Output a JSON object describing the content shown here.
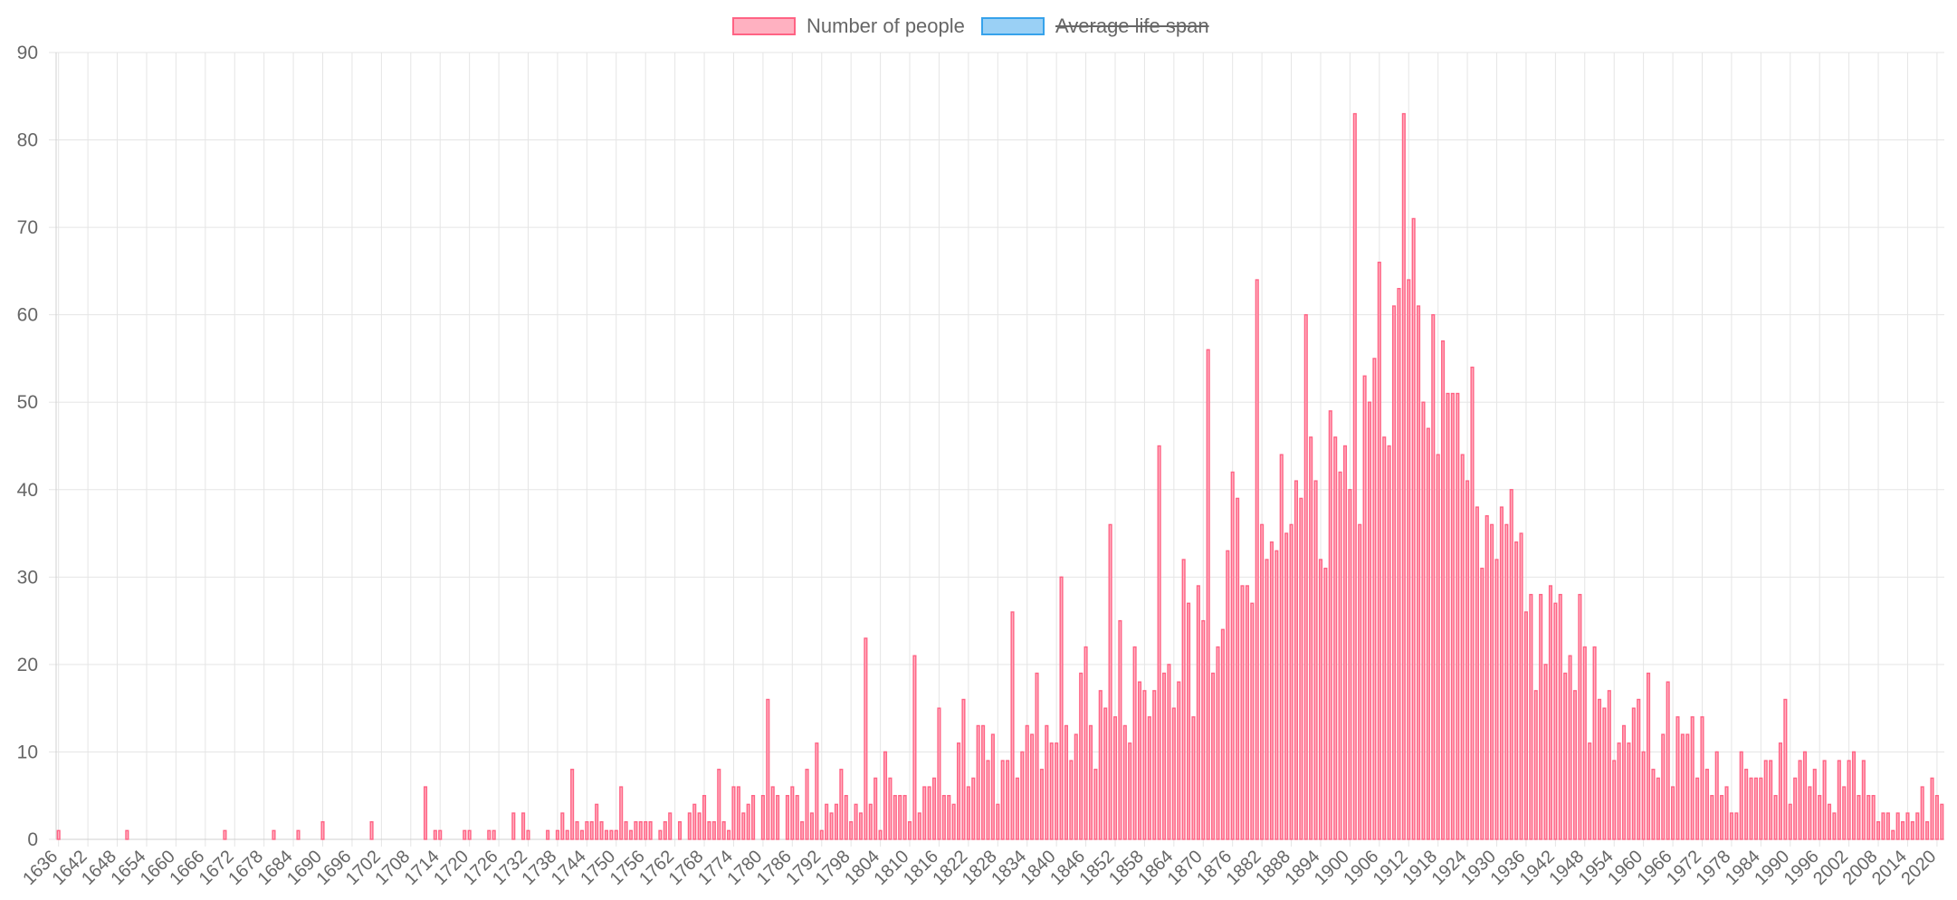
{
  "legend": {
    "series1_label": "Number of people",
    "series2_label": "Average life span"
  },
  "colors": {
    "series1_fill": "#ffb1c1",
    "series1_stroke": "#ff6384",
    "series2_fill": "#9ad0f5",
    "series2_stroke": "#36a2eb",
    "grid": "#e5e5e5",
    "text": "#666666"
  },
  "chart_data": {
    "type": "bar",
    "title": "",
    "xlabel": "",
    "ylabel": "",
    "ylim": [
      0,
      90
    ],
    "y_ticks": [
      0,
      10,
      20,
      30,
      40,
      50,
      60,
      70,
      80,
      90
    ],
    "x_range": [
      1636,
      2021
    ],
    "x_tick_labels": [
      1636,
      1642,
      1648,
      1654,
      1660,
      1666,
      1672,
      1678,
      1684,
      1690,
      1696,
      1702,
      1708,
      1714,
      1720,
      1726,
      1732,
      1738,
      1744,
      1750,
      1756,
      1762,
      1768,
      1774,
      1780,
      1786,
      1792,
      1798,
      1804,
      1810,
      1816,
      1822,
      1828,
      1834,
      1840,
      1846,
      1852,
      1858,
      1864,
      1870,
      1876,
      1882,
      1888,
      1894,
      1900,
      1906,
      1912,
      1918,
      1924,
      1930,
      1936,
      1942,
      1948,
      1954,
      1960,
      1966,
      1972,
      1978,
      1984,
      1990,
      1996,
      2002,
      2008,
      2014,
      2020
    ],
    "grid": true,
    "legend_position": "top",
    "series": [
      {
        "name": "Number of people",
        "hidden": false,
        "points": [
          [
            1636,
            1
          ],
          [
            1650,
            1
          ],
          [
            1670,
            1
          ],
          [
            1680,
            1
          ],
          [
            1685,
            1
          ],
          [
            1690,
            2
          ],
          [
            1700,
            2
          ],
          [
            1711,
            6
          ],
          [
            1713,
            1
          ],
          [
            1714,
            1
          ],
          [
            1719,
            1
          ],
          [
            1720,
            1
          ],
          [
            1724,
            1
          ],
          [
            1725,
            1
          ],
          [
            1729,
            3
          ],
          [
            1731,
            3
          ],
          [
            1732,
            1
          ],
          [
            1736,
            1
          ],
          [
            1738,
            1
          ],
          [
            1739,
            3
          ],
          [
            1740,
            1
          ],
          [
            1741,
            8
          ],
          [
            1742,
            2
          ],
          [
            1743,
            1
          ],
          [
            1744,
            2
          ],
          [
            1745,
            2
          ],
          [
            1746,
            4
          ],
          [
            1747,
            2
          ],
          [
            1748,
            1
          ],
          [
            1749,
            1
          ],
          [
            1750,
            1
          ],
          [
            1751,
            6
          ],
          [
            1752,
            2
          ],
          [
            1753,
            1
          ],
          [
            1754,
            2
          ],
          [
            1755,
            2
          ],
          [
            1756,
            2
          ],
          [
            1757,
            2
          ],
          [
            1759,
            1
          ],
          [
            1760,
            2
          ],
          [
            1761,
            3
          ],
          [
            1763,
            2
          ],
          [
            1765,
            3
          ],
          [
            1766,
            4
          ],
          [
            1767,
            3
          ],
          [
            1768,
            5
          ],
          [
            1769,
            2
          ],
          [
            1770,
            2
          ],
          [
            1771,
            8
          ],
          [
            1772,
            2
          ],
          [
            1773,
            1
          ],
          [
            1774,
            6
          ],
          [
            1775,
            6
          ],
          [
            1776,
            3
          ],
          [
            1777,
            4
          ],
          [
            1778,
            5
          ],
          [
            1780,
            5
          ],
          [
            1781,
            16
          ],
          [
            1782,
            6
          ],
          [
            1783,
            5
          ],
          [
            1785,
            5
          ],
          [
            1786,
            6
          ],
          [
            1787,
            5
          ],
          [
            1788,
            2
          ],
          [
            1789,
            8
          ],
          [
            1790,
            3
          ],
          [
            1791,
            11
          ],
          [
            1792,
            1
          ],
          [
            1793,
            4
          ],
          [
            1794,
            3
          ],
          [
            1795,
            4
          ],
          [
            1796,
            8
          ],
          [
            1797,
            5
          ],
          [
            1798,
            2
          ],
          [
            1799,
            4
          ],
          [
            1800,
            3
          ],
          [
            1801,
            23
          ],
          [
            1802,
            4
          ],
          [
            1803,
            7
          ],
          [
            1804,
            1
          ],
          [
            1805,
            10
          ],
          [
            1806,
            7
          ],
          [
            1807,
            5
          ],
          [
            1808,
            5
          ],
          [
            1809,
            5
          ],
          [
            1810,
            2
          ],
          [
            1811,
            21
          ],
          [
            1812,
            3
          ],
          [
            1813,
            6
          ],
          [
            1814,
            6
          ],
          [
            1815,
            7
          ],
          [
            1816,
            15
          ],
          [
            1817,
            5
          ],
          [
            1818,
            5
          ],
          [
            1819,
            4
          ],
          [
            1820,
            11
          ],
          [
            1821,
            16
          ],
          [
            1822,
            6
          ],
          [
            1823,
            7
          ],
          [
            1824,
            13
          ],
          [
            1825,
            13
          ],
          [
            1826,
            9
          ],
          [
            1827,
            12
          ],
          [
            1828,
            4
          ],
          [
            1829,
            9
          ],
          [
            1830,
            9
          ],
          [
            1831,
            26
          ],
          [
            1832,
            7
          ],
          [
            1833,
            10
          ],
          [
            1834,
            13
          ],
          [
            1835,
            12
          ],
          [
            1836,
            19
          ],
          [
            1837,
            8
          ],
          [
            1838,
            13
          ],
          [
            1839,
            11
          ],
          [
            1840,
            11
          ],
          [
            1841,
            30
          ],
          [
            1842,
            13
          ],
          [
            1843,
            9
          ],
          [
            1844,
            12
          ],
          [
            1845,
            19
          ],
          [
            1846,
            22
          ],
          [
            1847,
            13
          ],
          [
            1848,
            8
          ],
          [
            1849,
            17
          ],
          [
            1850,
            15
          ],
          [
            1851,
            36
          ],
          [
            1852,
            14
          ],
          [
            1853,
            25
          ],
          [
            1854,
            13
          ],
          [
            1855,
            11
          ],
          [
            1856,
            22
          ],
          [
            1857,
            18
          ],
          [
            1858,
            17
          ],
          [
            1859,
            14
          ],
          [
            1860,
            17
          ],
          [
            1861,
            45
          ],
          [
            1862,
            19
          ],
          [
            1863,
            20
          ],
          [
            1864,
            15
          ],
          [
            1865,
            18
          ],
          [
            1866,
            32
          ],
          [
            1867,
            27
          ],
          [
            1868,
            14
          ],
          [
            1869,
            29
          ],
          [
            1870,
            25
          ],
          [
            1871,
            56
          ],
          [
            1872,
            19
          ],
          [
            1873,
            22
          ],
          [
            1874,
            24
          ],
          [
            1875,
            33
          ],
          [
            1876,
            42
          ],
          [
            1877,
            39
          ],
          [
            1878,
            29
          ],
          [
            1879,
            29
          ],
          [
            1880,
            27
          ],
          [
            1881,
            64
          ],
          [
            1882,
            36
          ],
          [
            1883,
            32
          ],
          [
            1884,
            34
          ],
          [
            1885,
            33
          ],
          [
            1886,
            44
          ],
          [
            1887,
            35
          ],
          [
            1888,
            36
          ],
          [
            1889,
            41
          ],
          [
            1890,
            39
          ],
          [
            1891,
            60
          ],
          [
            1892,
            46
          ],
          [
            1893,
            41
          ],
          [
            1894,
            32
          ],
          [
            1895,
            31
          ],
          [
            1896,
            49
          ],
          [
            1897,
            46
          ],
          [
            1898,
            42
          ],
          [
            1899,
            45
          ],
          [
            1900,
            40
          ],
          [
            1901,
            83
          ],
          [
            1902,
            36
          ],
          [
            1903,
            53
          ],
          [
            1904,
            50
          ],
          [
            1905,
            55
          ],
          [
            1906,
            66
          ],
          [
            1907,
            46
          ],
          [
            1908,
            45
          ],
          [
            1909,
            61
          ],
          [
            1910,
            63
          ],
          [
            1911,
            83
          ],
          [
            1912,
            64
          ],
          [
            1913,
            71
          ],
          [
            1914,
            61
          ],
          [
            1915,
            50
          ],
          [
            1916,
            47
          ],
          [
            1917,
            60
          ],
          [
            1918,
            44
          ],
          [
            1919,
            57
          ],
          [
            1920,
            51
          ],
          [
            1921,
            51
          ],
          [
            1922,
            51
          ],
          [
            1923,
            44
          ],
          [
            1924,
            41
          ],
          [
            1925,
            54
          ],
          [
            1926,
            38
          ],
          [
            1927,
            31
          ],
          [
            1928,
            37
          ],
          [
            1929,
            36
          ],
          [
            1930,
            32
          ],
          [
            1931,
            38
          ],
          [
            1932,
            36
          ],
          [
            1933,
            40
          ],
          [
            1934,
            34
          ],
          [
            1935,
            35
          ],
          [
            1936,
            26
          ],
          [
            1937,
            28
          ],
          [
            1938,
            17
          ],
          [
            1939,
            28
          ],
          [
            1940,
            20
          ],
          [
            1941,
            29
          ],
          [
            1942,
            27
          ],
          [
            1943,
            28
          ],
          [
            1944,
            19
          ],
          [
            1945,
            21
          ],
          [
            1946,
            17
          ],
          [
            1947,
            28
          ],
          [
            1948,
            22
          ],
          [
            1949,
            11
          ],
          [
            1950,
            22
          ],
          [
            1951,
            16
          ],
          [
            1952,
            15
          ],
          [
            1953,
            17
          ],
          [
            1954,
            9
          ],
          [
            1955,
            11
          ],
          [
            1956,
            13
          ],
          [
            1957,
            11
          ],
          [
            1958,
            15
          ],
          [
            1959,
            16
          ],
          [
            1960,
            10
          ],
          [
            1961,
            19
          ],
          [
            1962,
            8
          ],
          [
            1963,
            7
          ],
          [
            1964,
            12
          ],
          [
            1965,
            18
          ],
          [
            1966,
            6
          ],
          [
            1967,
            14
          ],
          [
            1968,
            12
          ],
          [
            1969,
            12
          ],
          [
            1970,
            14
          ],
          [
            1971,
            7
          ],
          [
            1972,
            14
          ],
          [
            1973,
            8
          ],
          [
            1974,
            5
          ],
          [
            1975,
            10
          ],
          [
            1976,
            5
          ],
          [
            1977,
            6
          ],
          [
            1978,
            3
          ],
          [
            1979,
            3
          ],
          [
            1980,
            10
          ],
          [
            1981,
            8
          ],
          [
            1982,
            7
          ],
          [
            1983,
            7
          ],
          [
            1984,
            7
          ],
          [
            1985,
            9
          ],
          [
            1986,
            9
          ],
          [
            1987,
            5
          ],
          [
            1988,
            11
          ],
          [
            1989,
            16
          ],
          [
            1990,
            4
          ],
          [
            1991,
            7
          ],
          [
            1992,
            9
          ],
          [
            1993,
            10
          ],
          [
            1994,
            6
          ],
          [
            1995,
            8
          ],
          [
            1996,
            5
          ],
          [
            1997,
            9
          ],
          [
            1998,
            4
          ],
          [
            1999,
            3
          ],
          [
            2000,
            9
          ],
          [
            2001,
            6
          ],
          [
            2002,
            9
          ],
          [
            2003,
            10
          ],
          [
            2004,
            5
          ],
          [
            2005,
            9
          ],
          [
            2006,
            5
          ],
          [
            2007,
            5
          ],
          [
            2008,
            2
          ],
          [
            2009,
            3
          ],
          [
            2010,
            3
          ],
          [
            2011,
            1
          ],
          [
            2012,
            3
          ],
          [
            2013,
            2
          ],
          [
            2014,
            3
          ],
          [
            2015,
            2
          ],
          [
            2016,
            3
          ],
          [
            2017,
            6
          ],
          [
            2018,
            2
          ],
          [
            2019,
            7
          ],
          [
            2020,
            5
          ],
          [
            2021,
            4
          ]
        ]
      },
      {
        "name": "Average life span",
        "hidden": true,
        "points": []
      }
    ]
  }
}
